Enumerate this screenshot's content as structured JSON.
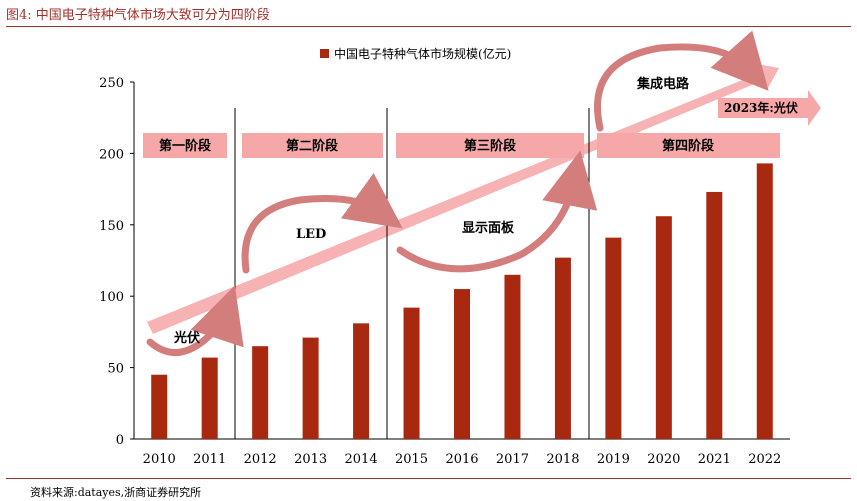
{
  "figure_title": "图4:   中国电子特种气体市场大致可分为四阶段",
  "source": "资料来源:datayes,浙商证券研究所",
  "colors": {
    "bar": "#a8290f",
    "stage_box": "#f6a7a7",
    "arrow": "#f7b3b3",
    "curve": "#d47d7d",
    "title": "#a5302a"
  },
  "chart_data": {
    "type": "bar",
    "legend": "中国电子特种气体市场规模(亿元)",
    "legend_position": "top-center",
    "categories": [
      "2010",
      "2011",
      "2012",
      "2013",
      "2014",
      "2015",
      "2016",
      "2017",
      "2018",
      "2019",
      "2020",
      "2021",
      "2022"
    ],
    "series": [
      {
        "name": "中国电子特种气体市场规模(亿元)",
        "values": [
          45,
          57,
          65,
          71,
          81,
          92,
          105,
          115,
          127,
          141,
          156,
          173,
          193
        ]
      }
    ],
    "ylim": [
      0,
      250
    ],
    "yticks": [
      "0",
      "50",
      "100",
      "150",
      "200",
      "250"
    ],
    "grid": false,
    "stages": [
      "第一阶段",
      "第二阶段",
      "第三阶段",
      "第四阶段"
    ],
    "annotations": {
      "photovoltaic": "光伏",
      "led": "LED",
      "display_panel": "显示面板",
      "ic": "集成电路",
      "pv_2023": "2023年:光伏"
    }
  }
}
